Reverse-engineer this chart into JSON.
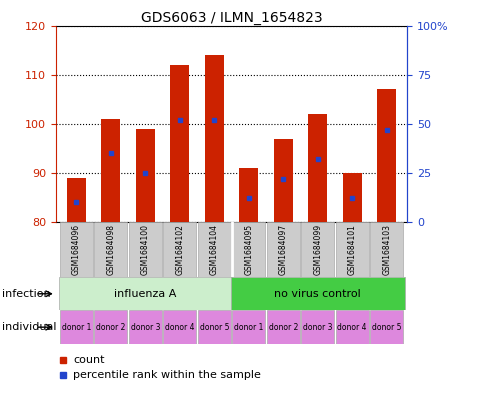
{
  "title": "GDS6063 / ILMN_1654823",
  "samples": [
    "GSM1684096",
    "GSM1684098",
    "GSM1684100",
    "GSM1684102",
    "GSM1684104",
    "GSM1684095",
    "GSM1684097",
    "GSM1684099",
    "GSM1684101",
    "GSM1684103"
  ],
  "count_values": [
    89,
    101,
    99,
    112,
    114,
    91,
    97,
    102,
    90,
    107
  ],
  "percentile_values": [
    10,
    35,
    25,
    52,
    52,
    12,
    22,
    32,
    12,
    47
  ],
  "ymin": 80,
  "ymax": 120,
  "yticks": [
    80,
    90,
    100,
    110,
    120
  ],
  "right_yticks": [
    0,
    25,
    50,
    75,
    100
  ],
  "right_yticklabels": [
    "0",
    "25",
    "50",
    "75",
    "100%"
  ],
  "bar_color": "#cc2200",
  "blue_color": "#2244cc",
  "bar_width": 0.55,
  "infection_groups": [
    {
      "label": "influenza A",
      "start": 0,
      "end": 5,
      "color": "#cceecc"
    },
    {
      "label": "no virus control",
      "start": 5,
      "end": 10,
      "color": "#44cc44"
    }
  ],
  "individual_labels": [
    "donor 1",
    "donor 2",
    "donor 3",
    "donor 4",
    "donor 5",
    "donor 1",
    "donor 2",
    "donor 3",
    "donor 4",
    "donor 5"
  ],
  "individual_color": "#dd88dd",
  "sample_box_color": "#cccccc",
  "infection_label": "infection",
  "individual_label": "individual",
  "legend_count": "count",
  "legend_percentile": "percentile rank within the sample",
  "bg_color": "#ffffff",
  "plot_bg_color": "#ffffff"
}
